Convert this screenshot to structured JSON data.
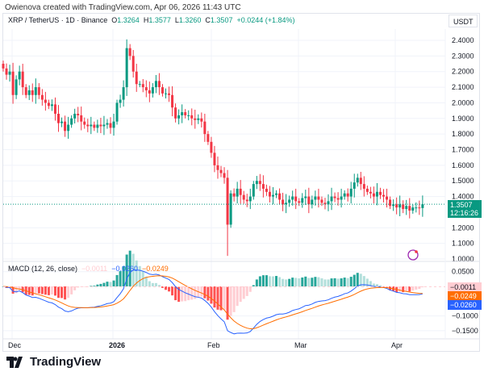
{
  "credit": "Owienova created with TradingView.com, Apr 06, 2026 11:43 UTC",
  "legend": {
    "symbol": "XRP / TetherUS · 1D · Binance",
    "o_label": "O",
    "o": "1.3264",
    "h_label": "H",
    "h": "1.3577",
    "l_label": "L",
    "l": "1.3260",
    "c_label": "C",
    "c": "1.3507",
    "change": "+0.0244 (+1.84%)"
  },
  "price_axis": {
    "unit": "USDT",
    "ticks": [
      "2.4000",
      "2.3000",
      "2.2000",
      "2.1000",
      "2.0000",
      "1.9000",
      "1.8000",
      "1.7000",
      "1.6000",
      "1.5000",
      "1.4000",
      "1.2000",
      "1.1000",
      "1.0000"
    ],
    "last_price": "1.3507",
    "countdown": "12:16:26"
  },
  "macd": {
    "label": "MACD (12, 26, close)",
    "hist": "−0.0011",
    "macd": "−0.0260",
    "signal": "−0.0249",
    "ticks": [
      "0.0500",
      "−0.1000",
      "−0.1500"
    ]
  },
  "time_axis": {
    "labels": [
      "Dec",
      "2026",
      "Feb",
      "Mar",
      "Apr"
    ]
  },
  "footer": {
    "brand": "TradingView"
  },
  "colors": {
    "up": "#089981",
    "down": "#f23645",
    "macd_line": "#2962ff",
    "signal_line": "#ff6d00",
    "hist_up": "#26a69a",
    "hist_up_light": "#b2dfdb",
    "hist_down": "#ff5252",
    "hist_down_light": "#ffcdd2"
  },
  "chart_data": {
    "type": "candlestick",
    "first_date": "Nov 28",
    "first_open": 2.25,
    "closes": [
      2.22,
      2.18,
      2.2,
      2.05,
      2.15,
      2.2,
      2.1,
      2.05,
      2.08,
      2.05,
      2.1,
      2.05,
      2.02,
      2.0,
      1.98,
      1.99,
      1.93,
      1.87,
      1.88,
      1.82,
      1.86,
      1.9,
      1.93,
      1.92,
      1.88,
      1.86,
      1.85,
      1.86,
      1.84,
      1.86,
      1.85,
      1.86,
      1.87,
      1.84,
      1.88,
      2.0,
      2.02,
      2.1,
      2.35,
      2.3,
      2.2,
      2.12,
      2.12,
      2.1,
      2.08,
      2.06,
      2.1,
      2.14,
      2.1,
      2.06,
      2.06,
      2.05,
      1.97,
      1.9,
      1.92,
      1.94,
      1.92,
      1.92,
      1.9,
      1.89,
      1.9,
      1.88,
      1.8,
      1.75,
      1.68,
      1.6,
      1.57,
      1.55,
      1.52,
      1.22,
      1.42,
      1.4,
      1.45,
      1.41,
      1.38,
      1.37,
      1.4,
      1.48,
      1.5,
      1.48,
      1.45,
      1.43,
      1.4,
      1.41,
      1.42,
      1.38,
      1.35,
      1.36,
      1.38,
      1.4,
      1.37,
      1.36,
      1.39,
      1.4,
      1.35,
      1.38,
      1.4,
      1.38,
      1.36,
      1.35,
      1.37,
      1.4,
      1.39,
      1.38,
      1.4,
      1.42,
      1.4,
      1.45,
      1.49,
      1.52,
      1.48,
      1.45,
      1.43,
      1.42,
      1.4,
      1.43,
      1.41,
      1.4,
      1.38,
      1.34,
      1.35,
      1.33,
      1.35,
      1.32,
      1.34,
      1.31,
      1.33,
      1.33,
      1.3264,
      1.3507
    ],
    "ylim": [
      1.0,
      2.45
    ]
  }
}
